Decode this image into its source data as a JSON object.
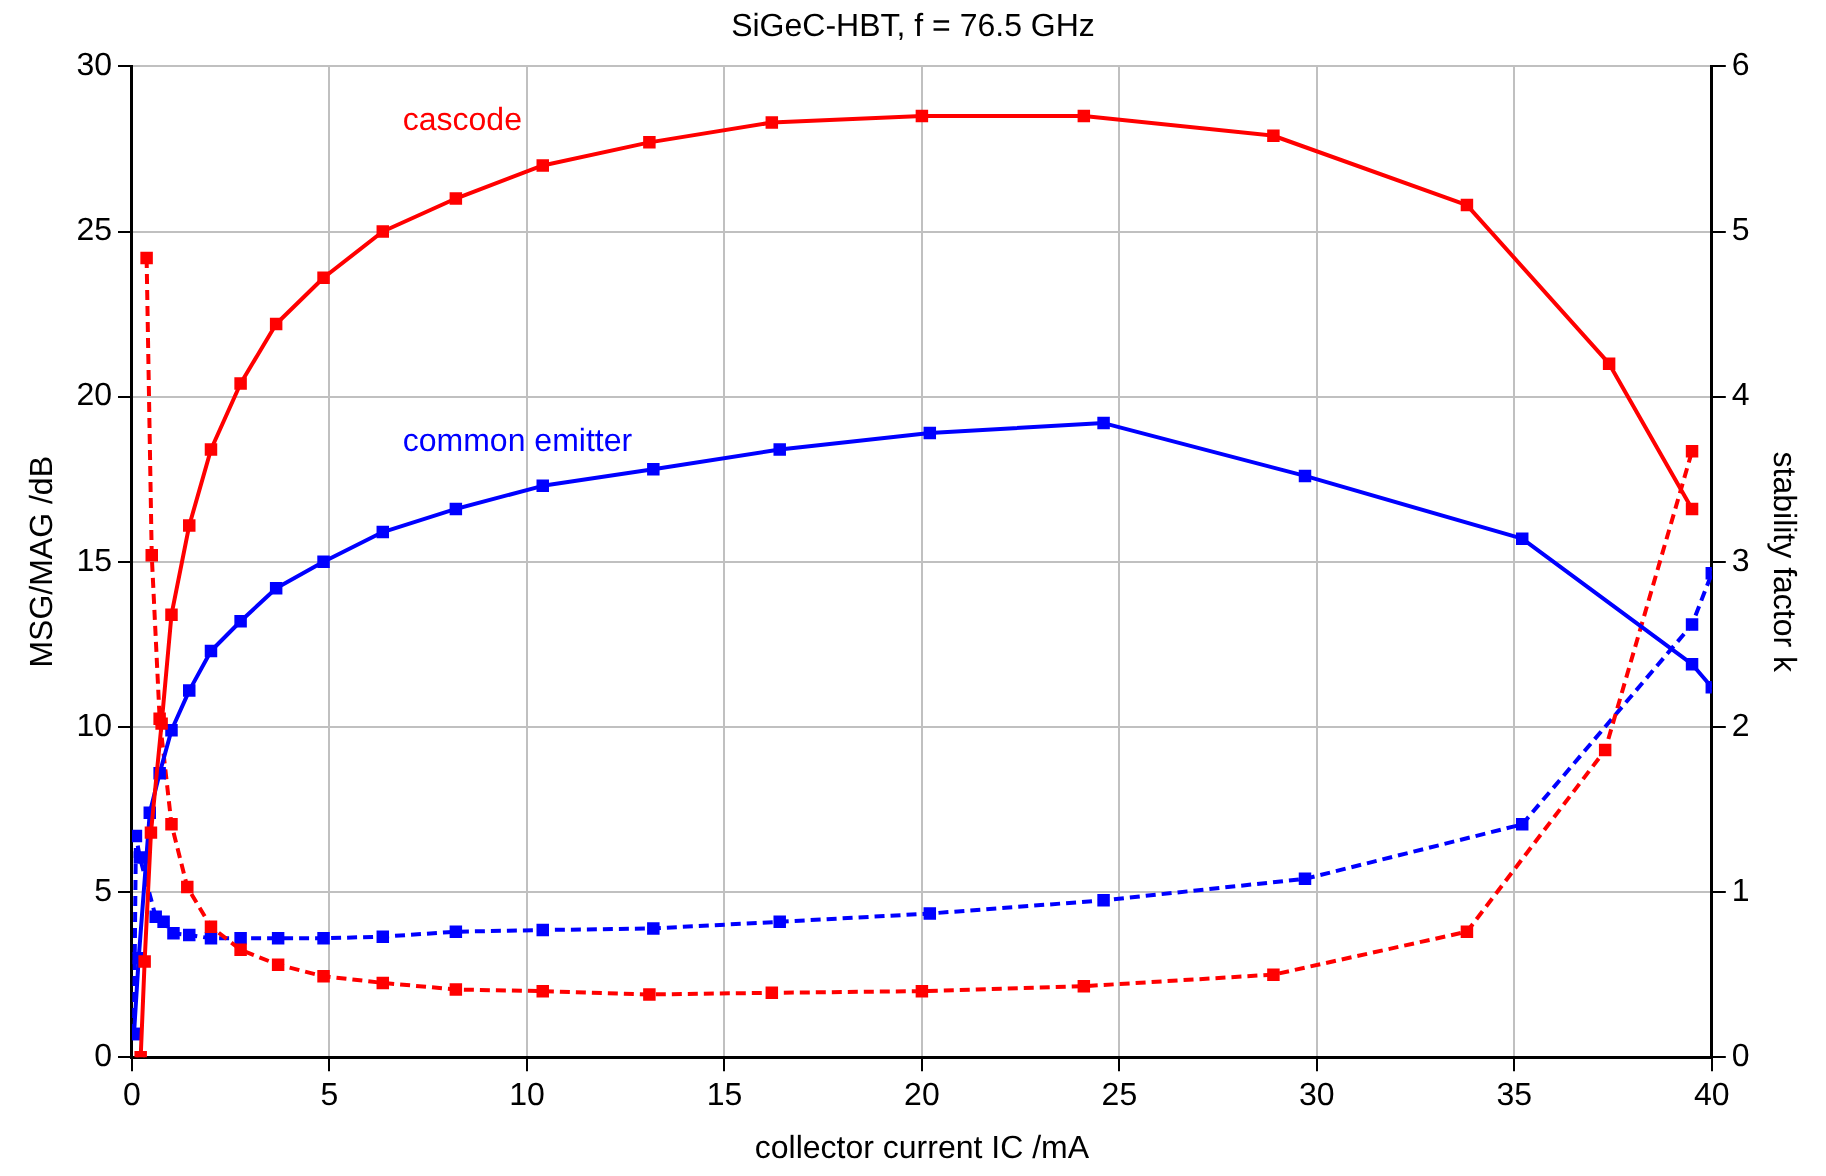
{
  "chart_data": {
    "type": "line",
    "title": "SiGeC-HBT, f = 76.5 GHz",
    "xlabel": "collector current IC /mA",
    "ylabel": "MSG/MAG /dB",
    "y2label": "stability factor k",
    "xlim": [
      0,
      40
    ],
    "xticks": [
      0,
      5,
      10,
      15,
      20,
      25,
      30,
      35,
      40
    ],
    "ylim": [
      0,
      30
    ],
    "yticks": [
      0,
      5,
      10,
      15,
      20,
      25,
      30
    ],
    "y2lim": [
      0,
      6
    ],
    "y2ticks": [
      0,
      1,
      2,
      3,
      4,
      5,
      6
    ],
    "grid": true,
    "legend": false,
    "marker": "square",
    "series": [
      {
        "name": "cascode",
        "color": "#ff0000",
        "line_style": "solid",
        "x": [
          0.22,
          0.32,
          0.48,
          0.75,
          1.0,
          1.45,
          2.0,
          2.75,
          3.65,
          4.85,
          6.35,
          8.2,
          10.4,
          13.1,
          16.2,
          20.0,
          24.1,
          28.9,
          33.8,
          37.4,
          39.5
        ],
        "values": [
          0,
          2.9,
          6.8,
          10.1,
          13.4,
          16.1,
          18.4,
          20.4,
          22.2,
          23.6,
          25.0,
          26.0,
          27.0,
          27.7,
          28.3,
          28.5,
          28.5,
          27.9,
          25.8,
          21.0,
          16.6
        ]
      },
      {
        "name": "common emitter",
        "color": "#0000ff",
        "line_style": "solid",
        "x": [
          0.05,
          0.17,
          0.45,
          0.7,
          1.0,
          1.45,
          2.0,
          2.75,
          3.65,
          4.85,
          6.35,
          8.2,
          10.4,
          13.2,
          16.4,
          20.2,
          24.6,
          29.7,
          35.2,
          39.5,
          40
        ],
        "values": [
          0.7,
          3.0,
          7.4,
          8.6,
          9.9,
          11.1,
          12.3,
          13.2,
          14.2,
          15.0,
          15.9,
          16.6,
          17.3,
          17.8,
          18.4,
          18.9,
          19.2,
          17.6,
          15.7,
          11.9,
          11.2
        ]
      },
      {
        "color": "#ff0000",
        "line_style": "dashed",
        "axis": "y2",
        "x": [
          0.37,
          0.5,
          0.7,
          1.0,
          1.4,
          2.0,
          2.75,
          3.7,
          4.85,
          6.35,
          8.2,
          10.4,
          13.1,
          16.2,
          20.0,
          24.1,
          28.9,
          33.8,
          37.3,
          39.5
        ],
        "values": [
          4.84,
          3.04,
          2.05,
          1.41,
          1.03,
          0.79,
          0.65,
          0.56,
          0.49,
          0.45,
          0.41,
          0.4,
          0.38,
          0.39,
          0.4,
          0.43,
          0.5,
          0.76,
          1.86,
          3.67
        ]
      },
      {
        "color": "#0000ff",
        "line_style": "dashed",
        "axis": "y2",
        "x": [
          0.05,
          0.1,
          0.2,
          0.6,
          0.8,
          1.05,
          1.45,
          2.0,
          2.75,
          3.7,
          4.85,
          6.35,
          8.2,
          10.4,
          13.2,
          16.4,
          20.2,
          24.6,
          29.7,
          35.2,
          39.5,
          40
        ],
        "values": [
          0.14,
          1.34,
          1.21,
          0.85,
          0.82,
          0.75,
          0.74,
          0.72,
          0.72,
          0.72,
          0.72,
          0.73,
          0.76,
          0.77,
          0.78,
          0.82,
          0.87,
          0.95,
          1.08,
          1.41,
          2.62,
          2.93
        ]
      }
    ]
  }
}
